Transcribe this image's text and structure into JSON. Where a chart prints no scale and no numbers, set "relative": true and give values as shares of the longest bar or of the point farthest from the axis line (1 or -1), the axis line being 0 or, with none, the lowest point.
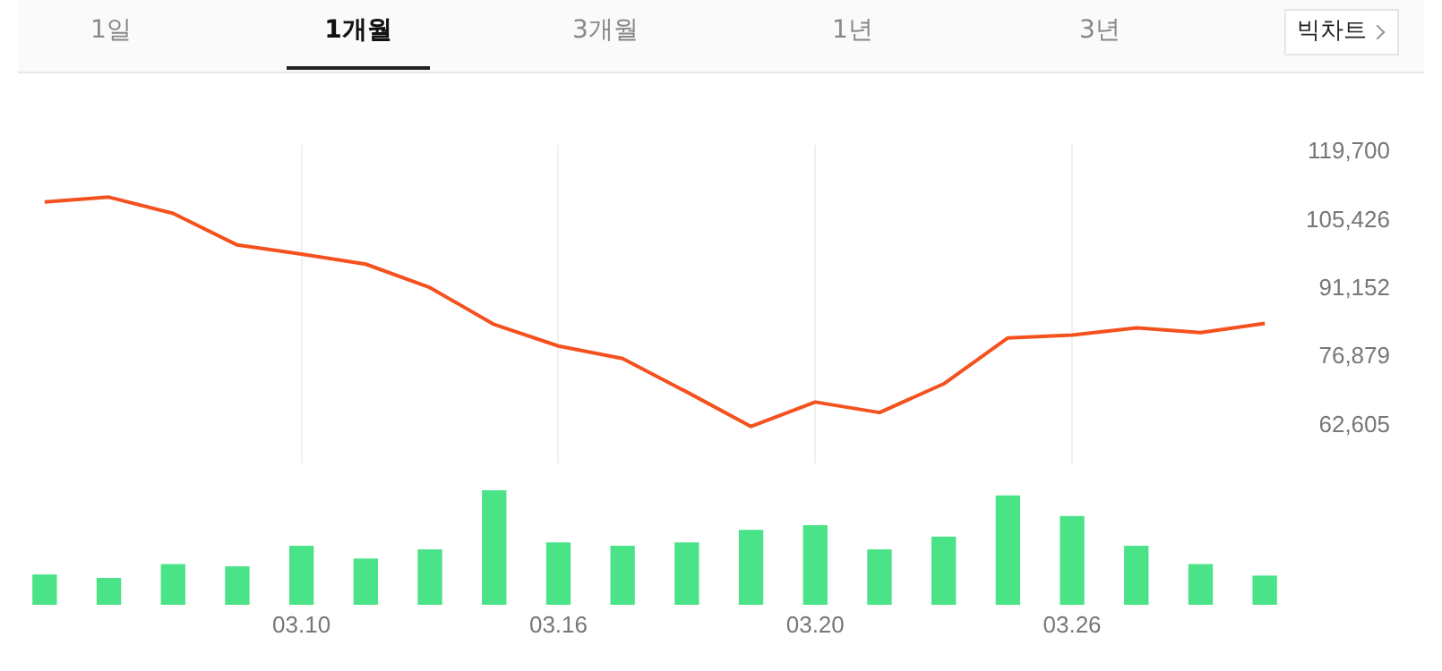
{
  "chart_data": [
    {
      "type": "other",
      "annotations": [
        "1일",
        "1개월",
        "3개월",
        "1년",
        "3년",
        "빅차트"
      ]
    },
    {
      "type": "line",
      "categories": [
        null,
        null,
        null,
        null,
        "03.10",
        null,
        null,
        null,
        "03.16",
        null,
        null,
        null,
        "03.20",
        null,
        null,
        null,
        "03.26",
        null,
        null,
        null
      ],
      "series": [
        {
          "color": "#f4511e",
          "values": [
            109300,
            110300,
            106900,
            100300,
            98400,
            96300,
            91400,
            83700,
            79200,
            76600,
            69600,
            62400,
            67500,
            65300,
            71300,
            80900,
            81500,
            83000,
            82000,
            83900
          ]
        }
      ],
      "ylim": [
        54600,
        121200
      ],
      "yticks": [
        {
          "value": 62605,
          "label": "62,605"
        },
        {
          "value": 76879,
          "label": "76,879"
        },
        {
          "value": 91152,
          "label": "91,152"
        },
        {
          "value": 105426,
          "label": "105,426"
        },
        {
          "value": 119700,
          "label": "119,700"
        }
      ],
      "grid": "x",
      "tick_labels": "y"
    },
    {
      "type": "bar",
      "categories": [
        null,
        null,
        null,
        null,
        "03.10",
        null,
        null,
        null,
        "03.16",
        null,
        null,
        null,
        "03.20",
        null,
        null,
        null,
        "03.26",
        null,
        null,
        null
      ],
      "relative": true,
      "color": "#4ae388",
      "values": [
        0.26,
        0.23,
        0.35,
        0.33,
        0.51,
        0.4,
        0.48,
        1,
        0.54,
        0.51,
        0.54,
        0.65,
        0.69,
        0.48,
        0.59,
        0.95,
        0.77,
        0.51,
        0.35,
        0.25
      ],
      "tick_labels": "x"
    }
  ]
}
